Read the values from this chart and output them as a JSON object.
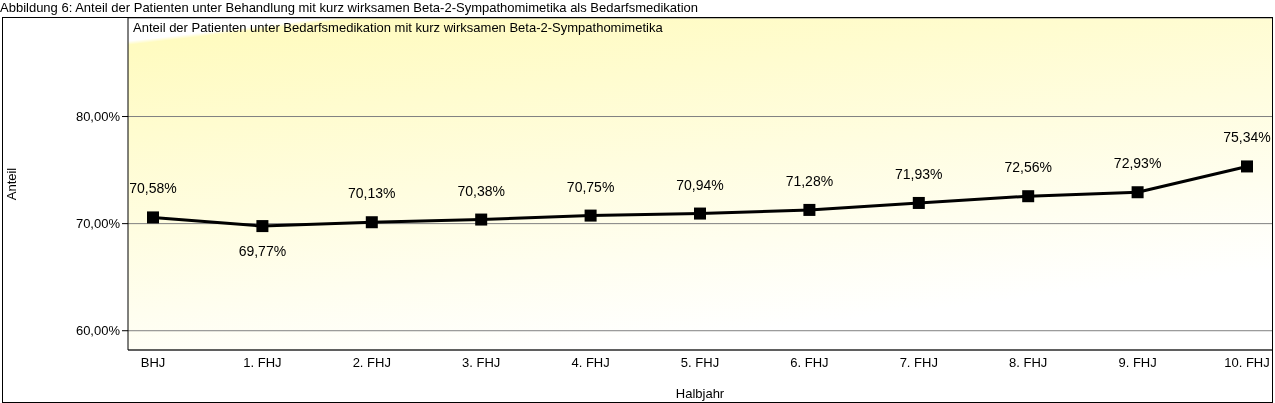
{
  "chart_data": {
    "type": "line",
    "title": "Abbildung 6: Anteil der Patienten unter Behandlung mit kurz wirksamen Beta-2-Sympathomimetika als Bedarfsmedikation",
    "subtitle": "Anteil der Patienten unter Bedarfsmedikation mit kurz wirksamen Beta-2-Sympathomimetika",
    "xlabel": "Halbjahr",
    "ylabel": "Anteil",
    "categories": [
      "BHJ",
      "1. FHJ",
      "2. FHJ",
      "3. FHJ",
      "4. FHJ",
      "5. FHJ",
      "6. FHJ",
      "7. FHJ",
      "8. FHJ",
      "9. FHJ",
      "10. FHJ"
    ],
    "series": [
      {
        "color": "#000000",
        "values": [
          70.58,
          69.77,
          70.13,
          70.38,
          70.75,
          70.94,
          71.28,
          71.93,
          72.56,
          72.93,
          75.34
        ],
        "value_labels": [
          "70,58%",
          "69,77%",
          "70,13%",
          "70,38%",
          "70,75%",
          "70,94%",
          "71,28%",
          "71,93%",
          "72,56%",
          "72,93%",
          "75,34%"
        ]
      }
    ],
    "ylim": [
      58.2,
      89.2
    ],
    "yticks": [
      {
        "value": 60,
        "label": "60,00%"
      },
      {
        "value": 70,
        "label": "70,00%"
      },
      {
        "value": 80,
        "label": "80,00%"
      }
    ],
    "grid": "y",
    "legend": false,
    "marker": "square",
    "line_style": "solid"
  }
}
